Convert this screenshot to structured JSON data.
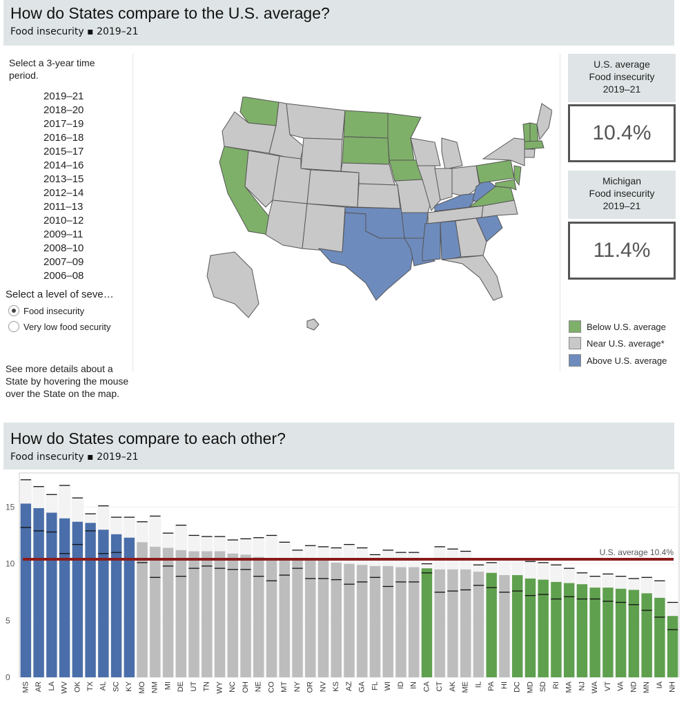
{
  "top": {
    "title": "How do States compare to the U.S. average?",
    "subtitle": "Food insecurity ▪ 2019–21"
  },
  "left": {
    "period_prompt": "Select a 3-year time period.",
    "periods": [
      "2019–21",
      "2018–20",
      "2017–19",
      "2016–18",
      "2015–17",
      "2014–16",
      "2013–15",
      "2012–14",
      "2011–13",
      "2010–12",
      "2009–11",
      "2008–10",
      "2007–09",
      "2006–08"
    ],
    "severity_prompt": "Select a level of seve…",
    "severity_options": [
      "Food insecurity",
      "Very low food security"
    ],
    "hint": "See more details about a State by hovering the mouse over the State on the map."
  },
  "right": {
    "us_head": "U.S. average\nFood insecurity\n2019–21",
    "us_value": "10.4%",
    "state_head": "Michigan\nFood insecurity\n2019–21",
    "state_value": "11.4%",
    "legend": [
      "Below U.S. average",
      "Near U.S. average*",
      "Above U.S. average"
    ]
  },
  "colors": {
    "below": "#7fb069",
    "near": "#c8c8c8",
    "above": "#6e8bbd",
    "bar_above": "#4a6ea9",
    "bar_near": "#bdbdbd",
    "bar_below": "#5fa04e",
    "avg_line": "#8b1a1a"
  },
  "bottom": {
    "title": "How do States compare to each other?",
    "subtitle": "Food insecurity ▪ 2019–21"
  },
  "chart_data": {
    "type": "bar",
    "title": "How do States compare to each other?",
    "ylim": [
      0,
      18
    ],
    "yticks": [
      0,
      5,
      10,
      15
    ],
    "reference_line": {
      "value": 10.4,
      "label": "U.S. average 10.4%"
    },
    "categories": [
      "MS",
      "AR",
      "LA",
      "WV",
      "OK",
      "TX",
      "AL",
      "SC",
      "KY",
      "MO",
      "NM",
      "MI",
      "DE",
      "UT",
      "TN",
      "WY",
      "NC",
      "OH",
      "NE",
      "CO",
      "MT",
      "NY",
      "OR",
      "NV",
      "KS",
      "AZ",
      "GA",
      "FL",
      "WI",
      "ID",
      "IN",
      "CA",
      "CT",
      "AK",
      "ME",
      "IL",
      "PA",
      "HI",
      "DC",
      "MD",
      "SD",
      "RI",
      "MA",
      "NJ",
      "WA",
      "VT",
      "VA",
      "ND",
      "MN",
      "IA",
      "NH"
    ],
    "values": [
      15.3,
      14.9,
      14.5,
      14.0,
      13.7,
      13.6,
      13.0,
      12.6,
      12.3,
      11.9,
      11.5,
      11.4,
      11.2,
      11.1,
      11.1,
      11.1,
      10.9,
      10.8,
      10.6,
      10.5,
      10.5,
      10.4,
      10.4,
      10.3,
      10.1,
      10.0,
      9.9,
      9.8,
      9.8,
      9.7,
      9.7,
      9.6,
      9.5,
      9.5,
      9.5,
      9.3,
      9.2,
      9.0,
      9.0,
      8.7,
      8.6,
      8.4,
      8.3,
      8.2,
      7.9,
      7.9,
      7.8,
      7.7,
      7.4,
      7.0,
      5.4
    ],
    "ci_upper": [
      17.4,
      16.8,
      16.1,
      16.9,
      15.8,
      14.4,
      15.1,
      14.1,
      14.1,
      13.7,
      14.2,
      12.7,
      13.4,
      12.5,
      12.4,
      12.4,
      12.1,
      12.2,
      12.3,
      12.5,
      11.9,
      11.2,
      11.6,
      11.5,
      11.4,
      11.7,
      11.4,
      10.8,
      11.2,
      11.0,
      11.0,
      10.0,
      11.5,
      11.3,
      11.1,
      9.9,
      10.1,
      10.4,
      10.4,
      10.2,
      10.1,
      9.9,
      9.6,
      9.2,
      8.9,
      9.1,
      8.9,
      8.7,
      8.8,
      8.5,
      6.6
    ],
    "ci_lower": [
      13.2,
      12.9,
      12.8,
      10.9,
      11.7,
      12.9,
      10.9,
      11.0,
      10.4,
      10.1,
      8.8,
      9.8,
      8.9,
      9.6,
      9.8,
      9.6,
      9.5,
      9.5,
      8.9,
      8.5,
      9.0,
      9.6,
      8.7,
      8.7,
      8.6,
      8.2,
      8.4,
      8.8,
      8.0,
      8.4,
      8.4,
      9.2,
      7.5,
      7.6,
      7.7,
      8.1,
      7.9,
      7.5,
      7.6,
      7.2,
      7.3,
      6.9,
      7.1,
      6.9,
      6.9,
      6.7,
      6.6,
      6.4,
      5.9,
      5.3,
      4.2
    ],
    "group": [
      "above",
      "above",
      "above",
      "above",
      "above",
      "above",
      "above",
      "above",
      "above",
      "near",
      "near",
      "near",
      "near",
      "near",
      "near",
      "near",
      "near",
      "near",
      "near",
      "near",
      "near",
      "near",
      "near",
      "near",
      "near",
      "near",
      "near",
      "near",
      "near",
      "near",
      "near",
      "below",
      "near",
      "near",
      "near",
      "near",
      "below",
      "near",
      "below",
      "below",
      "below",
      "below",
      "below",
      "below",
      "below",
      "below",
      "below",
      "below",
      "below",
      "below",
      "below"
    ]
  }
}
